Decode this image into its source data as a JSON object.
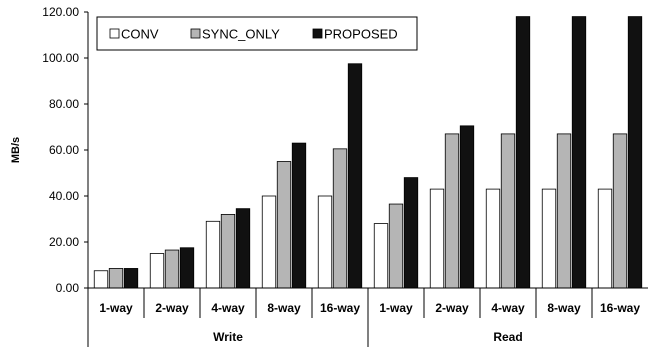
{
  "chart_data": {
    "type": "bar",
    "title": "",
    "ylabel": "MB/s",
    "xlabel": "",
    "ylim": [
      0,
      120
    ],
    "yticks": [
      "0.00",
      "20.00",
      "40.00",
      "60.00",
      "80.00",
      "100.00",
      "120.00"
    ],
    "grid": false,
    "legend_position": "top-left",
    "groups": [
      {
        "label": "Write",
        "categories": [
          "1-way",
          "2-way",
          "4-way",
          "8-way",
          "16-way"
        ]
      },
      {
        "label": "Read",
        "categories": [
          "1-way",
          "2-way",
          "4-way",
          "8-way",
          "16-way"
        ]
      }
    ],
    "categories": [
      "1-way",
      "2-way",
      "4-way",
      "8-way",
      "16-way",
      "1-way",
      "2-way",
      "4-way",
      "8-way",
      "16-way"
    ],
    "series": [
      {
        "name": "CONV",
        "color": "#ffffff",
        "values": [
          7.5,
          15,
          29,
          40,
          40,
          28,
          43,
          43,
          43,
          43
        ]
      },
      {
        "name": "SYNC_ONLY",
        "color": "#b5b5b5",
        "values": [
          8.5,
          16.5,
          32,
          55,
          60.5,
          36.5,
          67,
          67,
          67,
          67
        ]
      },
      {
        "name": "PROPOSED",
        "color": "#111111",
        "values": [
          8.5,
          17.5,
          34.5,
          63,
          97.5,
          48,
          70.5,
          118,
          118,
          118
        ]
      }
    ]
  }
}
